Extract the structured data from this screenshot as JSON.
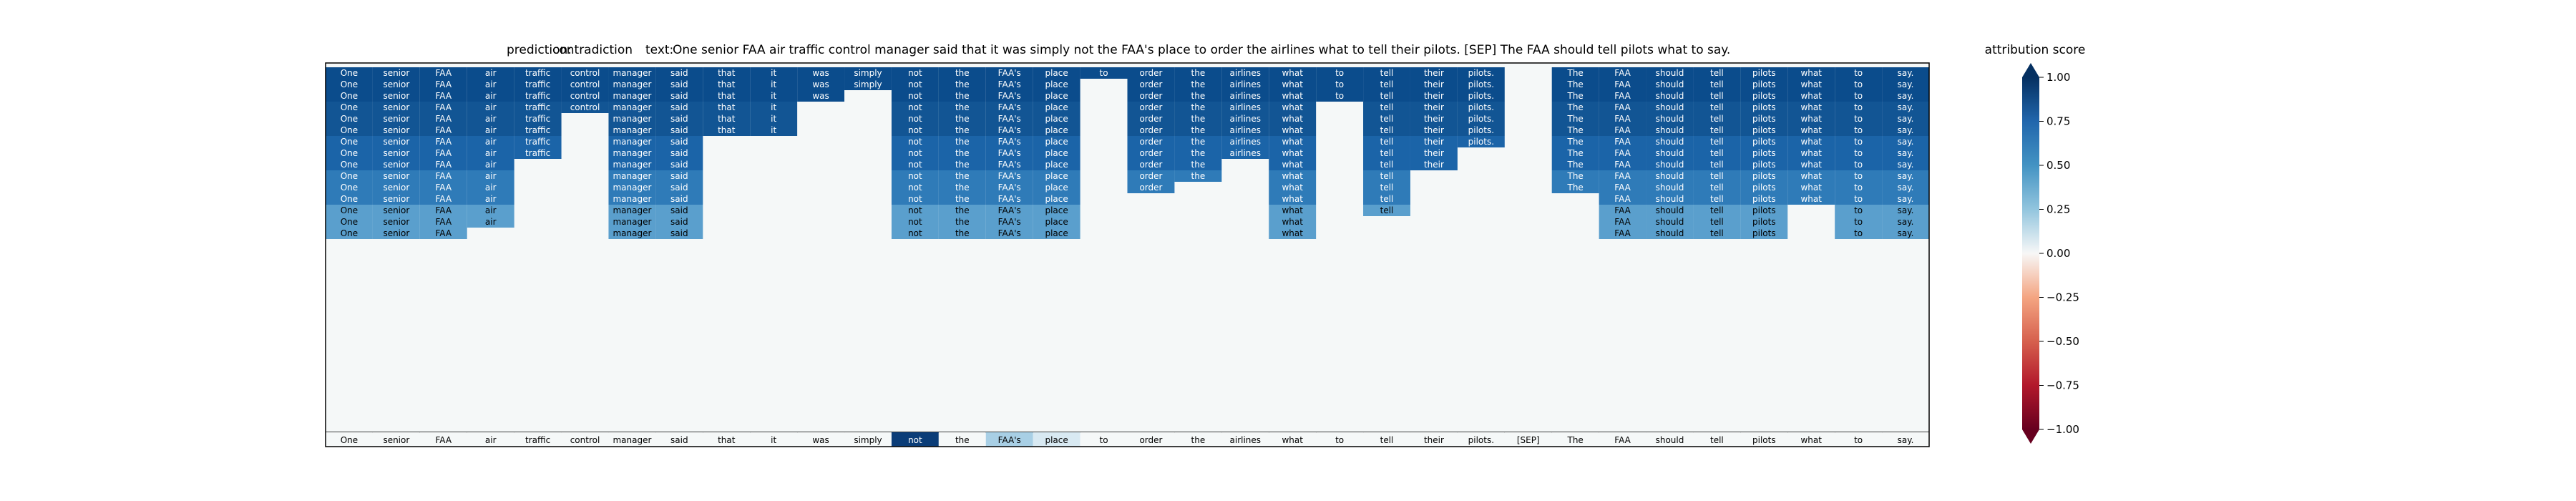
{
  "chart_data": {
    "type": "heatmap",
    "title_prediction_label": "prediction:",
    "title_prediction_value": "contradiction",
    "title_text_label": "text:",
    "title_text_value": "One senior FAA air traffic control manager said that it was simply not the FAA's place to order the airlines what to tell their pilots. [SEP] The FAA should tell pilots what to say.",
    "tokens": [
      "One",
      "senior",
      "FAA",
      "air",
      "traffic",
      "control",
      "manager",
      "said",
      "that",
      "it",
      "was",
      "simply",
      "not",
      "the",
      "FAA's",
      "place",
      "to",
      "order",
      "the",
      "airlines",
      "what",
      "to",
      "tell",
      "their",
      "pilots.",
      "[SEP]",
      "The",
      "FAA",
      "should",
      "tell",
      "pilots",
      "what",
      "to",
      "say."
    ],
    "visible_rows_top": [
      [
        0,
        1,
        2,
        3,
        4,
        5,
        6,
        7,
        8,
        9,
        10,
        11,
        12,
        13,
        14,
        15,
        16,
        17,
        18,
        19,
        20,
        21,
        22,
        23,
        24,
        26,
        27,
        28,
        29,
        30,
        31,
        32,
        33
      ],
      [
        0,
        1,
        2,
        3,
        4,
        5,
        6,
        7,
        8,
        9,
        10,
        11,
        12,
        13,
        14,
        15,
        17,
        18,
        19,
        20,
        21,
        22,
        23,
        24,
        26,
        27,
        28,
        29,
        30,
        31,
        32,
        33
      ],
      [
        0,
        1,
        2,
        3,
        4,
        5,
        6,
        7,
        8,
        9,
        10,
        12,
        13,
        14,
        15,
        17,
        18,
        19,
        20,
        21,
        22,
        23,
        24,
        26,
        27,
        28,
        29,
        30,
        31,
        32,
        33
      ],
      [
        0,
        1,
        2,
        3,
        4,
        5,
        6,
        7,
        8,
        9,
        12,
        13,
        14,
        15,
        17,
        18,
        19,
        20,
        22,
        23,
        24,
        26,
        27,
        28,
        29,
        30,
        31,
        32,
        33
      ],
      [
        0,
        1,
        2,
        3,
        4,
        6,
        7,
        8,
        9,
        12,
        13,
        14,
        15,
        17,
        18,
        19,
        20,
        22,
        23,
        24,
        26,
        27,
        28,
        29,
        30,
        31,
        32,
        33
      ],
      [
        0,
        1,
        2,
        3,
        4,
        6,
        7,
        8,
        9,
        12,
        13,
        14,
        15,
        17,
        18,
        19,
        20,
        22,
        23,
        24,
        26,
        27,
        28,
        29,
        30,
        31,
        32,
        33
      ],
      [
        0,
        1,
        2,
        3,
        4,
        6,
        7,
        12,
        13,
        14,
        15,
        17,
        18,
        19,
        20,
        22,
        23,
        24,
        26,
        27,
        28,
        29,
        30,
        31,
        32,
        33
      ],
      [
        0,
        1,
        2,
        3,
        4,
        6,
        7,
        12,
        13,
        14,
        15,
        17,
        18,
        19,
        20,
        22,
        23,
        26,
        27,
        28,
        29,
        30,
        31,
        32,
        33
      ],
      [
        0,
        1,
        2,
        3,
        6,
        7,
        12,
        13,
        14,
        15,
        17,
        18,
        20,
        22,
        23,
        26,
        27,
        28,
        29,
        30,
        31,
        32,
        33
      ],
      [
        0,
        1,
        2,
        3,
        6,
        7,
        12,
        13,
        14,
        15,
        17,
        18,
        20,
        22,
        26,
        27,
        28,
        29,
        30,
        31,
        32,
        33
      ],
      [
        0,
        1,
        2,
        3,
        6,
        7,
        12,
        13,
        14,
        15,
        17,
        20,
        22,
        26,
        27,
        28,
        29,
        30,
        31,
        32,
        33
      ],
      [
        0,
        1,
        2,
        3,
        6,
        7,
        12,
        13,
        14,
        15,
        20,
        22,
        27,
        28,
        29,
        30,
        31,
        32,
        33
      ],
      [
        0,
        1,
        2,
        3,
        6,
        7,
        12,
        13,
        14,
        15,
        20,
        22,
        27,
        28,
        29,
        30,
        32,
        33
      ],
      [
        0,
        1,
        2,
        3,
        6,
        7,
        12,
        13,
        14,
        15,
        20,
        27,
        28,
        29,
        30,
        32,
        33
      ],
      [
        0,
        1,
        2,
        6,
        7,
        12,
        13,
        14,
        15,
        20,
        27,
        28,
        29,
        30,
        32,
        33
      ]
    ],
    "tokens_row_order": "Rows listed top to bottom; each row lists token indices with visible labels. Final row is the token axis.",
    "colorbar_label": "attribution score",
    "colorbar_ticks": [
      "1.00",
      "0.75",
      "0.50",
      "0.25",
      "0.00",
      "−0.25",
      "−0.50",
      "−0.75",
      "−1.00"
    ],
    "colorbar_range": [
      -1,
      1
    ]
  }
}
